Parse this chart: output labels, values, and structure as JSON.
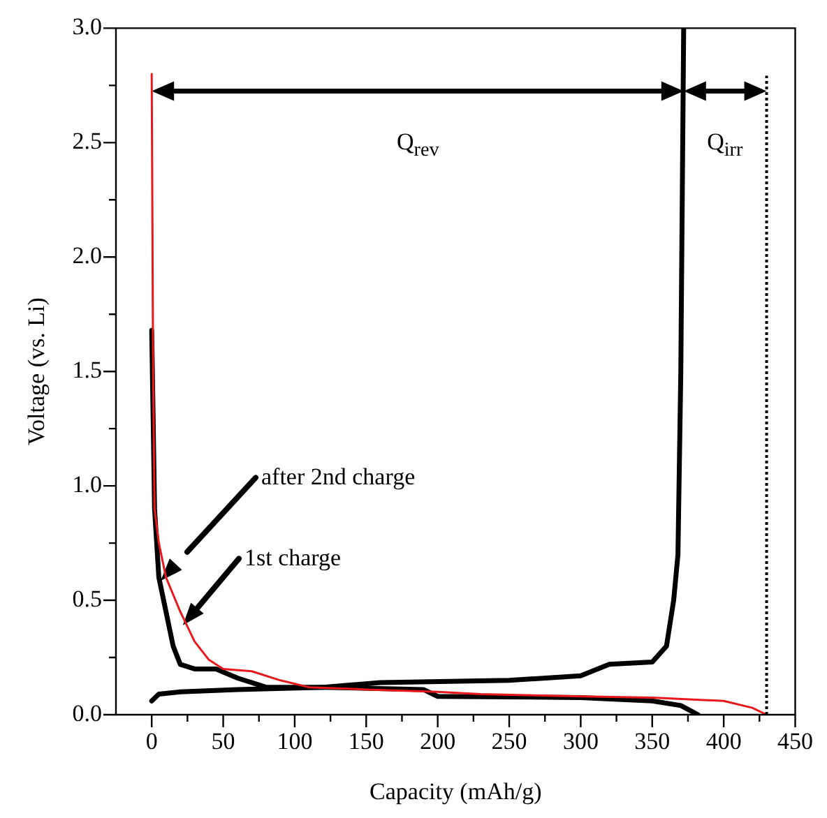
{
  "chart_data": {
    "type": "line",
    "xlabel": "Capacity (mAh/g)",
    "ylabel": "Voltage (vs. Li)",
    "xlim": [
      -25,
      450
    ],
    "ylim": [
      0,
      3
    ],
    "xticks": [
      0,
      {
        "value": 25,
        "label": null
      },
      50,
      {
        "value": 75,
        "label": null
      },
      100,
      {
        "value": 125,
        "label": null
      },
      150,
      {
        "value": 175,
        "label": null
      },
      200,
      {
        "value": 225,
        "label": null
      },
      250,
      {
        "value": 275,
        "label": null
      },
      300,
      {
        "value": 325,
        "label": null
      },
      350,
      {
        "value": 375,
        "label": null
      },
      400,
      {
        "value": 425,
        "label": null
      },
      450
    ],
    "yticks": [
      {
        "value": 0,
        "label": "0.0"
      },
      {
        "value": 0.25,
        "label": null
      },
      0.5,
      {
        "value": 0.75,
        "label": null
      },
      {
        "value": 1,
        "label": "1.0"
      },
      {
        "value": 1.25,
        "label": null
      },
      1.5,
      {
        "value": 1.75,
        "label": null
      },
      {
        "value": 2,
        "label": "2.0"
      },
      {
        "value": 2.25,
        "label": null
      },
      2.5,
      {
        "value": 2.75,
        "label": null
      },
      {
        "value": 3,
        "label": "3.0"
      }
    ],
    "grid": false,
    "legend": false,
    "marker": "none",
    "line_style": "solid",
    "series": [
      {
        "color": "#e8191d",
        "x": [
          0,
          1,
          2,
          5,
          10,
          20,
          30,
          40,
          50,
          70,
          90,
          110,
          150,
          200,
          230,
          300,
          350,
          400,
          420,
          430
        ],
        "values": [
          2.8,
          1.5,
          0.9,
          0.75,
          0.6,
          0.45,
          0.32,
          0.24,
          0.2,
          0.19,
          0.15,
          0.12,
          0.11,
          0.1,
          0.09,
          0.08,
          0.075,
          0.06,
          0.03,
          0
        ]
      },
      {
        "color": "#000000",
        "x": [
          0,
          1,
          2,
          5,
          10,
          15,
          20,
          30,
          45,
          60,
          80,
          120,
          190,
          200,
          300,
          350,
          370,
          382
        ],
        "values": [
          1.68,
          1.3,
          0.9,
          0.6,
          0.45,
          0.3,
          0.22,
          0.2,
          0.2,
          0.16,
          0.12,
          0.12,
          0.11,
          0.08,
          0.075,
          0.06,
          0.04,
          0
        ]
      },
      {
        "color": "#000000",
        "x": [
          0,
          5,
          20,
          60,
          120,
          160,
          250,
          300,
          320,
          350,
          360,
          365,
          368,
          370,
          372
        ],
        "values": [
          0.06,
          0.09,
          0.1,
          0.11,
          0.12,
          0.14,
          0.15,
          0.17,
          0.22,
          0.23,
          0.3,
          0.5,
          0.7,
          1.5,
          3.0
        ]
      }
    ],
    "ref_lines": [
      {
        "axis": "x",
        "value": 430,
        "color": "#000000",
        "line_style": "dotted"
      }
    ],
    "annotations": [
      "Q$_{rev}$",
      "Q$_{irr}$",
      "after 2nd charge",
      "1st charge"
    ]
  }
}
